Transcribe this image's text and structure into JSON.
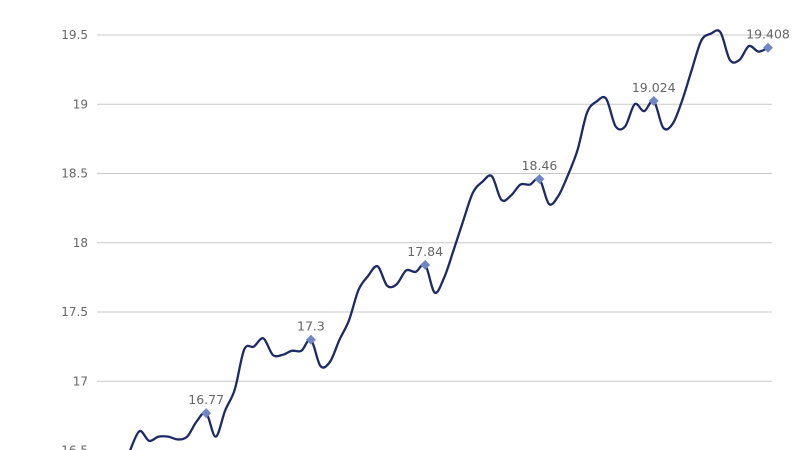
{
  "chart_data": {
    "type": "line",
    "title": "",
    "xlabel": "",
    "ylabel": "",
    "ylim": [
      16.5,
      19.75
    ],
    "grid": true,
    "yticks": [
      "16.5",
      "17",
      "17.5",
      "18",
      "18.5",
      "19",
      "19.5"
    ],
    "line_color": "#1c2a66",
    "marker_color": "#6f86c6",
    "values": [
      16.5,
      16.64,
      16.57,
      16.6,
      16.6,
      16.58,
      16.6,
      16.71,
      16.77,
      16.6,
      16.79,
      16.94,
      17.23,
      17.25,
      17.31,
      17.19,
      17.19,
      17.22,
      17.22,
      17.3,
      17.11,
      17.14,
      17.3,
      17.44,
      17.66,
      17.76,
      17.83,
      17.69,
      17.7,
      17.8,
      17.79,
      17.84,
      17.64,
      17.75,
      17.95,
      18.16,
      18.36,
      18.44,
      18.48,
      18.31,
      18.34,
      18.42,
      18.42,
      18.46,
      18.28,
      18.34,
      18.49,
      18.67,
      18.94,
      19.02,
      19.04,
      18.84,
      18.84,
      19.0,
      18.95,
      19.024,
      18.83,
      18.86,
      19.03,
      19.25,
      19.46,
      19.51,
      19.52,
      19.32,
      19.32,
      19.42,
      19.38,
      19.408
    ],
    "labeled_points": [
      {
        "index": 8,
        "label": "16.77"
      },
      {
        "index": 19,
        "label": "17.3"
      },
      {
        "index": 31,
        "label": "17.84"
      },
      {
        "index": 43,
        "label": "18.46"
      },
      {
        "index": 55,
        "label": "19.024"
      },
      {
        "index": 67,
        "label": "19.408"
      }
    ]
  }
}
